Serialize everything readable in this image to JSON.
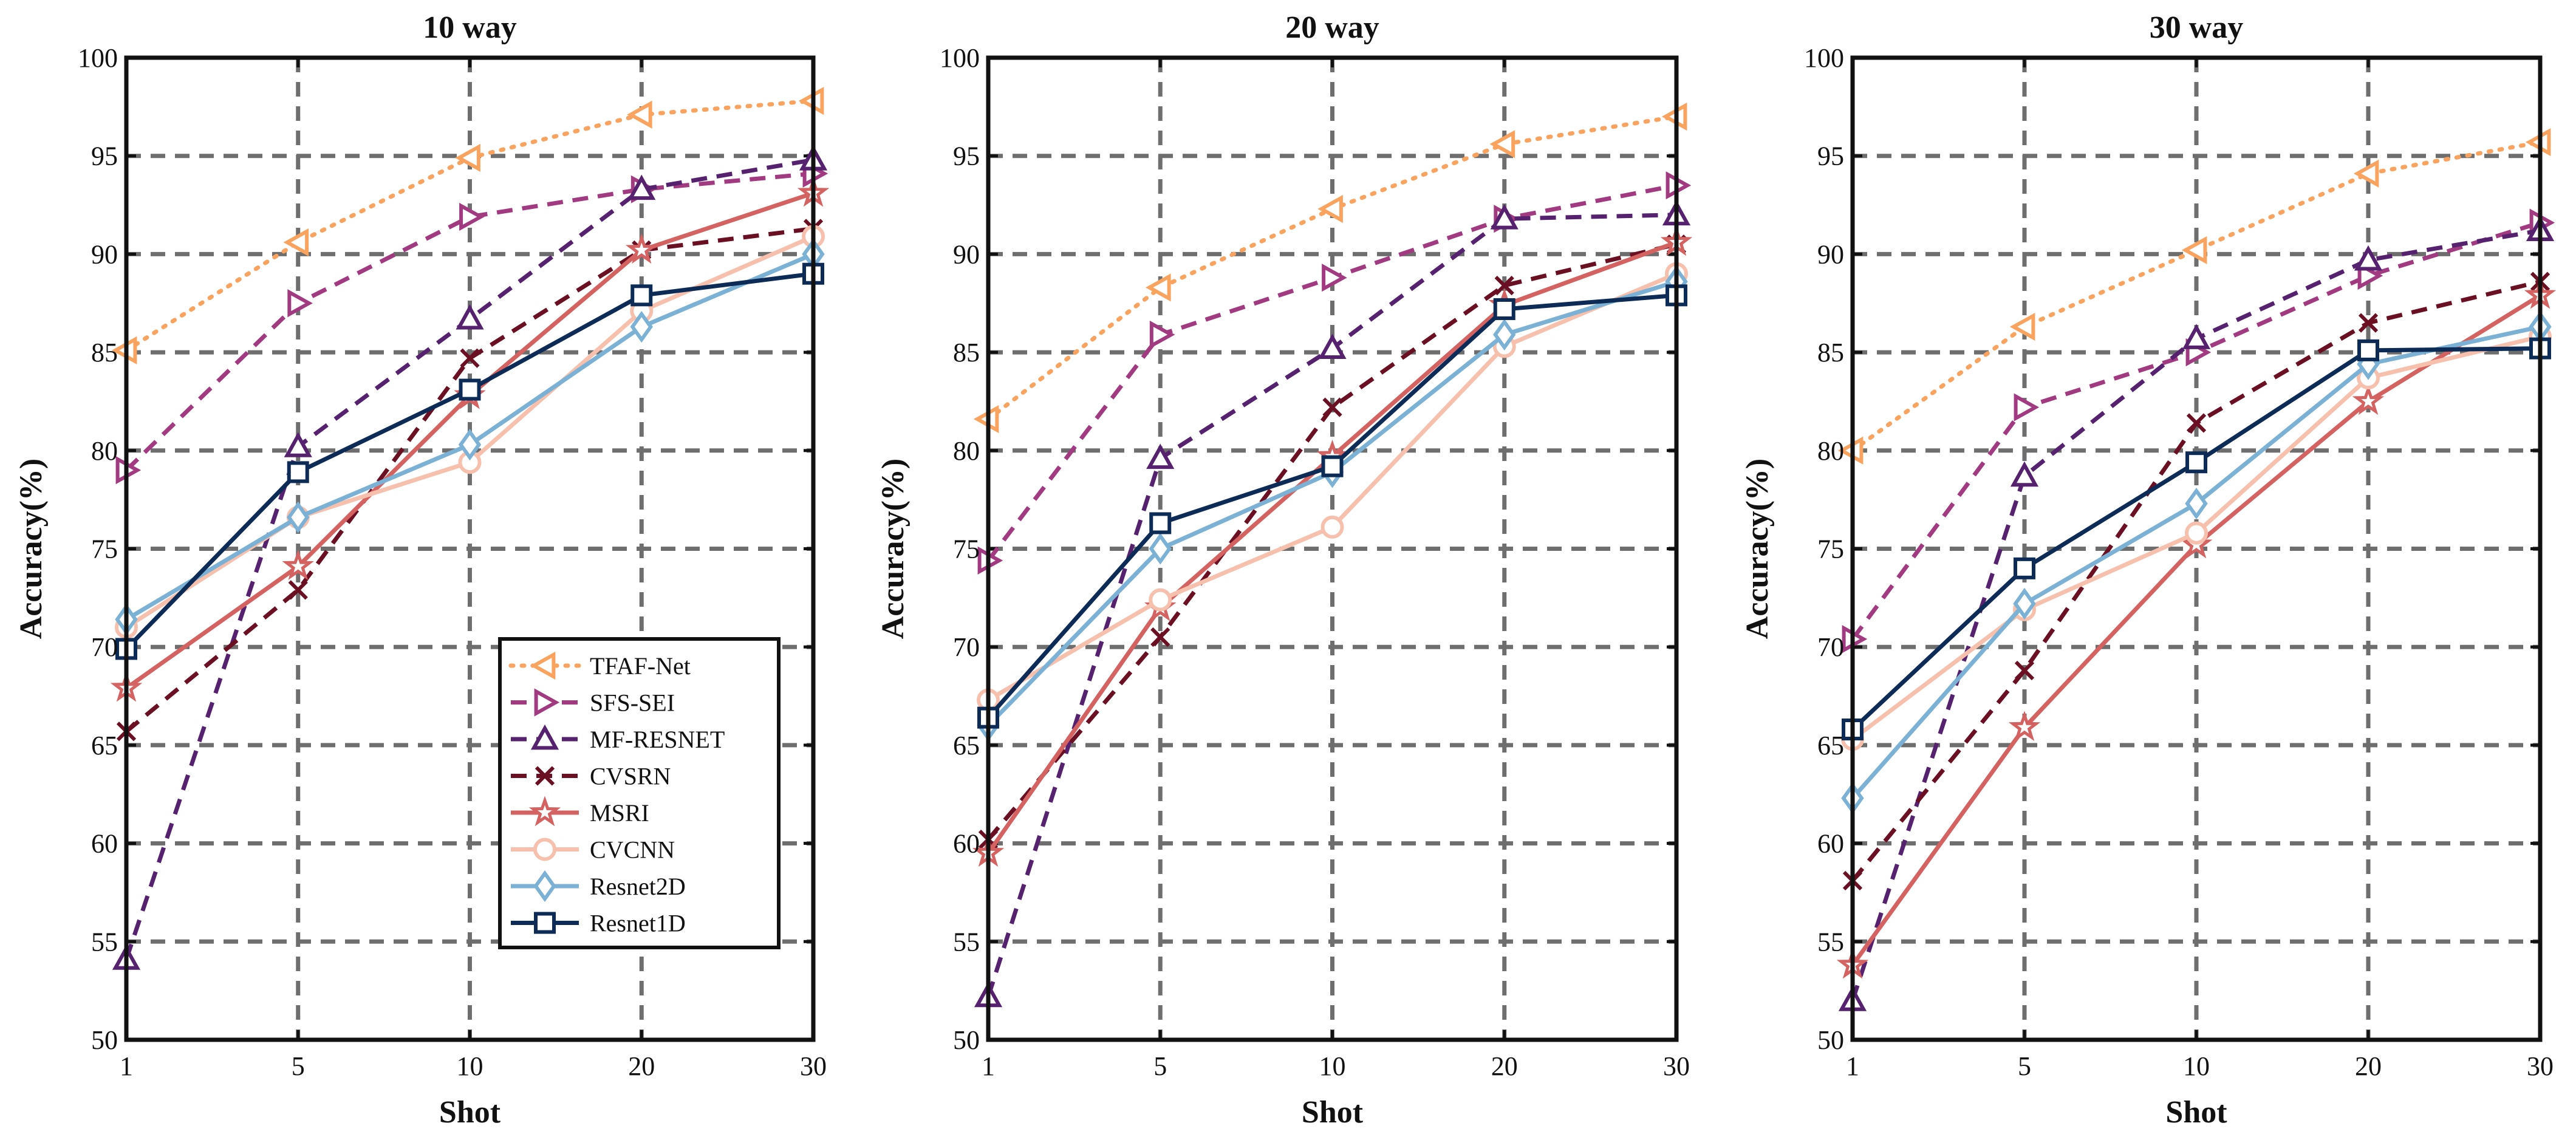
{
  "colors": {
    "TFAF-Net": "#f9a35f",
    "SFS-SEI": "#a23a82",
    "MF-RESNET": "#56216f",
    "CVSRN": "#6b0f22",
    "MSRI": "#d46260",
    "CVCNN": "#f6c0ad",
    "Resnet2D": "#7ab1d4",
    "Resnet1D": "#0c2b57"
  },
  "chart_data": [
    {
      "type": "line",
      "title": "10 way",
      "xlabel": "Shot",
      "ylabel": "Accuracy(%)",
      "categories": [
        "1",
        "5",
        "10",
        "20",
        "30"
      ],
      "ylim": [
        50,
        100
      ],
      "yticks": [
        "50",
        "55",
        "60",
        "65",
        "70",
        "75",
        "80",
        "85",
        "90",
        "95",
        "100"
      ],
      "grid": true,
      "legend": "bottom-right",
      "series": [
        {
          "name": "TFAF-Net",
          "values": [
            85.1,
            90.6,
            94.9,
            97.1,
            97.8
          ]
        },
        {
          "name": "SFS-SEI",
          "values": [
            79.0,
            87.5,
            91.9,
            93.3,
            94.1
          ]
        },
        {
          "name": "MF-RESNET",
          "values": [
            54.1,
            80.2,
            86.7,
            93.3,
            94.8
          ]
        },
        {
          "name": "CVSRN",
          "values": [
            65.7,
            72.9,
            84.7,
            90.2,
            91.3
          ]
        },
        {
          "name": "MSRI",
          "values": [
            67.9,
            74.1,
            82.8,
            90.2,
            93.1
          ]
        },
        {
          "name": "CVCNN",
          "values": [
            71.0,
            76.6,
            79.4,
            87.1,
            90.9
          ]
        },
        {
          "name": "Resnet2D",
          "values": [
            71.4,
            76.6,
            80.3,
            86.3,
            90.0
          ]
        },
        {
          "name": "Resnet1D",
          "values": [
            69.9,
            78.9,
            83.1,
            87.9,
            89.0
          ]
        }
      ]
    },
    {
      "type": "line",
      "title": "20 way",
      "xlabel": "Shot",
      "ylabel": "Accuracy(%)",
      "categories": [
        "1",
        "5",
        "10",
        "20",
        "30"
      ],
      "ylim": [
        50,
        100
      ],
      "yticks": [
        "50",
        "55",
        "60",
        "65",
        "70",
        "75",
        "80",
        "85",
        "90",
        "95",
        "100"
      ],
      "grid": true,
      "legend": "",
      "series": [
        {
          "name": "TFAF-Net",
          "values": [
            81.6,
            88.3,
            92.3,
            95.6,
            97.0
          ]
        },
        {
          "name": "SFS-SEI",
          "values": [
            74.4,
            85.9,
            88.8,
            91.8,
            93.5
          ]
        },
        {
          "name": "MF-RESNET",
          "values": [
            52.2,
            79.6,
            85.2,
            91.8,
            92.0
          ]
        },
        {
          "name": "CVSRN",
          "values": [
            60.2,
            70.5,
            82.2,
            88.4,
            90.5
          ]
        },
        {
          "name": "MSRI",
          "values": [
            59.5,
            72.0,
            79.7,
            87.4,
            90.6
          ]
        },
        {
          "name": "CVCNN",
          "values": [
            67.3,
            72.4,
            76.1,
            85.3,
            89.0
          ]
        },
        {
          "name": "Resnet2D",
          "values": [
            66.0,
            75.0,
            78.9,
            85.9,
            88.6
          ]
        },
        {
          "name": "Resnet1D",
          "values": [
            66.4,
            76.3,
            79.2,
            87.2,
            87.9
          ]
        }
      ]
    },
    {
      "type": "line",
      "title": "30 way",
      "xlabel": "Shot",
      "ylabel": "Accuracy(%)",
      "categories": [
        "1",
        "5",
        "10",
        "20",
        "30"
      ],
      "ylim": [
        50,
        100
      ],
      "yticks": [
        "50",
        "55",
        "60",
        "65",
        "70",
        "75",
        "80",
        "85",
        "90",
        "95",
        "100"
      ],
      "grid": true,
      "legend": "",
      "series": [
        {
          "name": "TFAF-Net",
          "values": [
            80.0,
            86.3,
            90.2,
            94.1,
            95.7
          ]
        },
        {
          "name": "SFS-SEI",
          "values": [
            70.4,
            82.2,
            85.0,
            88.9,
            91.6
          ]
        },
        {
          "name": "MF-RESNET",
          "values": [
            52.0,
            78.7,
            85.7,
            89.7,
            91.2
          ]
        },
        {
          "name": "CVSRN",
          "values": [
            58.1,
            68.8,
            81.4,
            86.5,
            88.6
          ]
        },
        {
          "name": "MSRI",
          "values": [
            53.8,
            65.9,
            75.2,
            82.5,
            87.9
          ]
        },
        {
          "name": "CVCNN",
          "values": [
            65.3,
            71.9,
            75.8,
            83.7,
            85.8
          ]
        },
        {
          "name": "Resnet2D",
          "values": [
            62.3,
            72.2,
            77.3,
            84.4,
            86.3
          ]
        },
        {
          "name": "Resnet1D",
          "values": [
            65.8,
            74.0,
            79.4,
            85.1,
            85.2
          ]
        }
      ]
    }
  ]
}
